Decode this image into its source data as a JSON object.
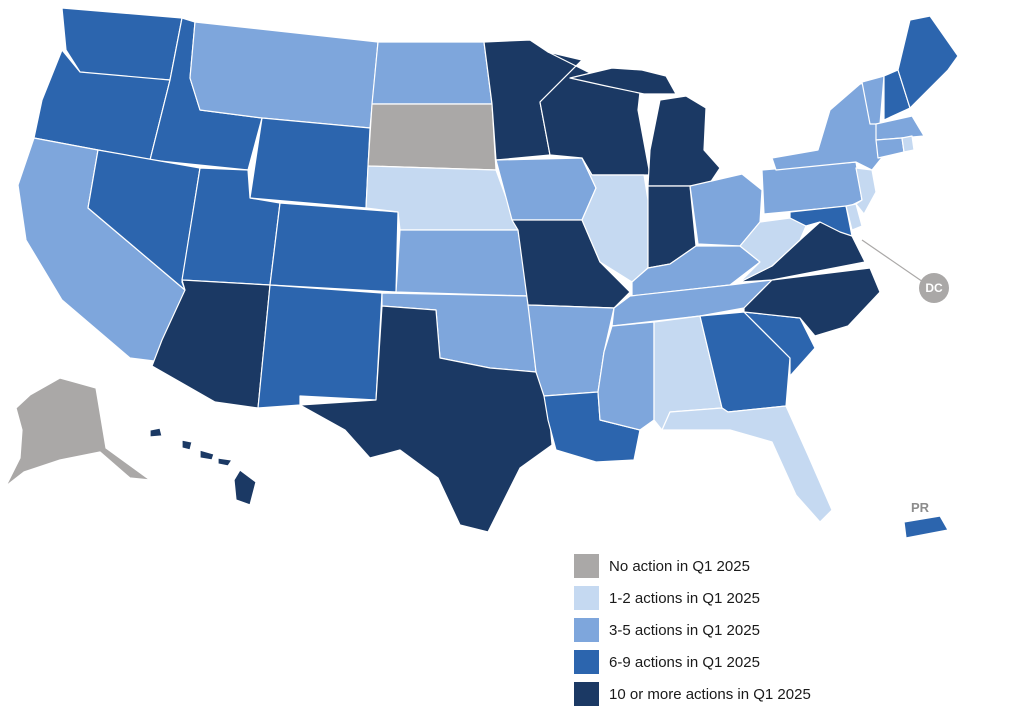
{
  "colors": {
    "none": "#aaa8a7",
    "low": "#c5d9f1",
    "mid": "#7ea6dc",
    "high": "#2c65ae",
    "top": "#1b3964"
  },
  "markers": {
    "dc": "DC",
    "pr": "PR"
  },
  "legend": [
    {
      "key": "none",
      "label": "No action in Q1 2025"
    },
    {
      "key": "low",
      "label": "1-2 actions in Q1 2025"
    },
    {
      "key": "mid",
      "label": "3-5 actions in Q1 2025"
    },
    {
      "key": "high",
      "label": "6-9 actions in Q1 2025"
    },
    {
      "key": "top",
      "label": "10 or more actions in Q1 2025"
    }
  ],
  "states": {
    "WA": "high",
    "OR": "high",
    "CA": "mid",
    "ID": "high",
    "NV": "high",
    "MT": "mid",
    "WY": "high",
    "UT": "high",
    "AZ": "top",
    "CO": "high",
    "NM": "high",
    "ND": "mid",
    "SD": "none",
    "NE": "low",
    "KS": "mid",
    "OK": "mid",
    "TX": "top",
    "MN": "top",
    "IA": "mid",
    "MO": "top",
    "AR": "mid",
    "LA": "high",
    "WI": "top",
    "IL": "low",
    "MI": "top",
    "IN": "top",
    "OH": "mid",
    "KY": "mid",
    "TN": "mid",
    "MS": "mid",
    "AL": "low",
    "GA": "high",
    "FL": "low",
    "SC": "high",
    "NC": "top",
    "VA": "top",
    "WV": "low",
    "MD": "high",
    "DE": "low",
    "NJ": "low",
    "PA": "mid",
    "NY": "mid",
    "VT": "mid",
    "NH": "high",
    "ME": "high",
    "MA": "mid",
    "CT": "mid",
    "RI": "low",
    "AK": "none",
    "HI": "top",
    "PR": "high"
  }
}
